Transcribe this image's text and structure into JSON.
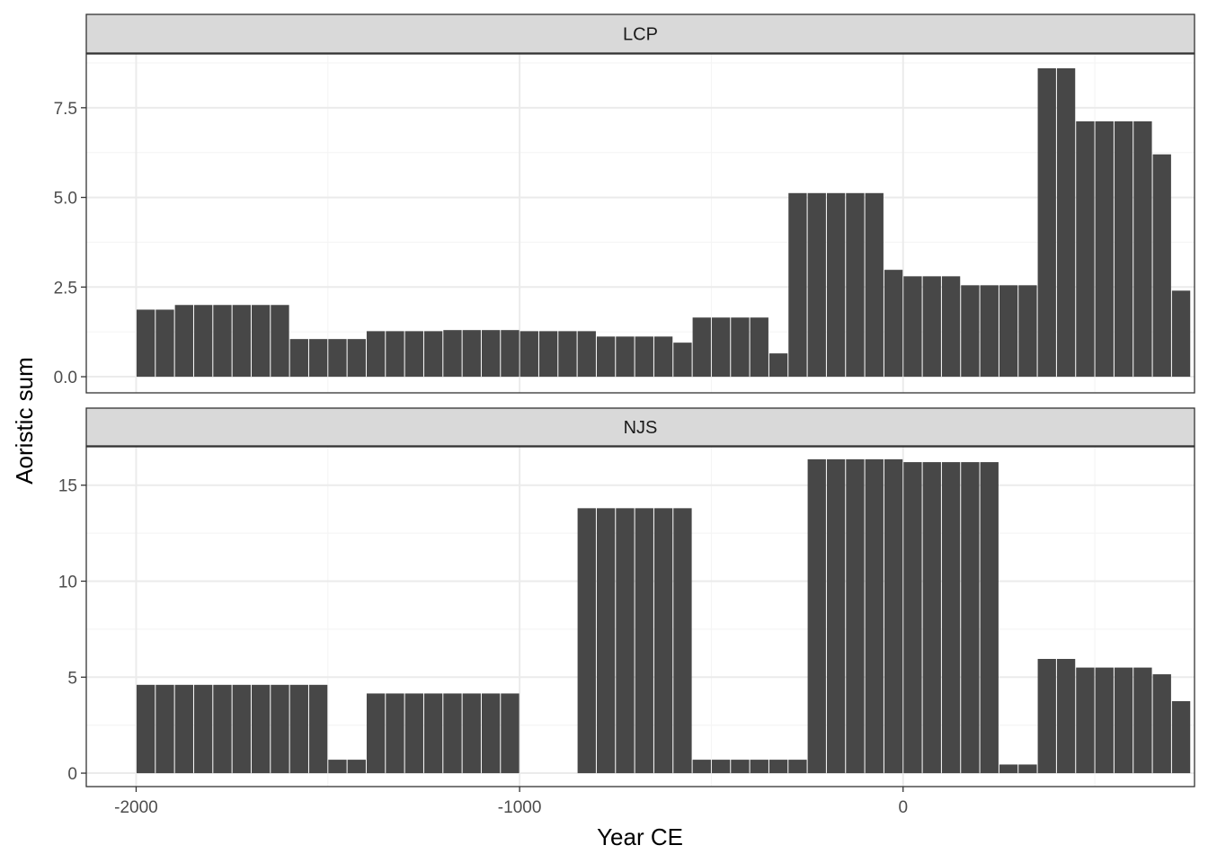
{
  "chart_data": {
    "type": "bar",
    "xlabel": "Year CE",
    "ylabel": "Aoristic sum",
    "x_ticks": [
      -2000,
      -1000,
      0
    ],
    "x_tick_labels": [
      "-2000",
      "-1000",
      "0"
    ],
    "xlim": [
      -2130,
      760
    ],
    "bin_width": 50,
    "x": [
      -2000,
      -1950,
      -1900,
      -1850,
      -1800,
      -1750,
      -1700,
      -1650,
      -1600,
      -1550,
      -1500,
      -1450,
      -1400,
      -1350,
      -1300,
      -1250,
      -1200,
      -1150,
      -1100,
      -1050,
      -1000,
      -950,
      -900,
      -850,
      -800,
      -750,
      -700,
      -650,
      -600,
      -550,
      -500,
      -450,
      -400,
      -350,
      -300,
      -250,
      -200,
      -150,
      -100,
      -50,
      0,
      50,
      100,
      150,
      200,
      250,
      300,
      350,
      400,
      450,
      500,
      550,
      600,
      650,
      700
    ],
    "grid": true,
    "panels": [
      {
        "name": "LCP",
        "ylim": [
          -0.45,
          9.0
        ],
        "y_ticks": [
          0,
          2.5,
          5,
          7.5
        ],
        "y_tick_labels": [
          "0.0",
          "2.5",
          "5.0",
          "7.5"
        ],
        "values": [
          1.87,
          1.87,
          2.0,
          2.0,
          2.0,
          2.0,
          2.0,
          2.0,
          1.05,
          1.05,
          1.05,
          1.05,
          1.27,
          1.27,
          1.27,
          1.27,
          1.3,
          1.3,
          1.3,
          1.3,
          1.27,
          1.27,
          1.27,
          1.27,
          1.12,
          1.12,
          1.12,
          1.12,
          0.95,
          1.65,
          1.65,
          1.65,
          1.65,
          0.65,
          5.12,
          5.12,
          5.12,
          5.12,
          5.12,
          2.98,
          2.8,
          2.8,
          2.8,
          2.55,
          2.55,
          2.55,
          2.55,
          8.6,
          8.6,
          7.12,
          7.12,
          7.12,
          7.12,
          6.2,
          2.4
        ]
      },
      {
        "name": "NJS",
        "ylim": [
          -0.7,
          17.0
        ],
        "y_ticks": [
          0,
          5,
          10,
          15
        ],
        "y_tick_labels": [
          "0",
          "5",
          "10",
          "15"
        ],
        "values": [
          4.6,
          4.6,
          4.6,
          4.6,
          4.6,
          4.6,
          4.6,
          4.6,
          4.6,
          4.6,
          0.7,
          0.7,
          4.15,
          4.15,
          4.15,
          4.15,
          4.15,
          4.15,
          4.15,
          4.15,
          0,
          0,
          0,
          13.8,
          13.8,
          13.8,
          13.8,
          13.8,
          13.8,
          0.7,
          0.7,
          0.7,
          0.7,
          0.7,
          0.7,
          16.35,
          16.35,
          16.35,
          16.35,
          16.35,
          16.2,
          16.2,
          16.2,
          16.2,
          16.2,
          0.45,
          0.45,
          5.95,
          5.95,
          5.5,
          5.5,
          5.5,
          5.5,
          5.15,
          3.75
        ]
      }
    ],
    "colors": {
      "bar": "#474747",
      "strip_fill": "#d9d9d9",
      "panel_border": "#333333",
      "grid_major": "#ebebeb",
      "grid_minor": "#f5f5f5"
    }
  }
}
